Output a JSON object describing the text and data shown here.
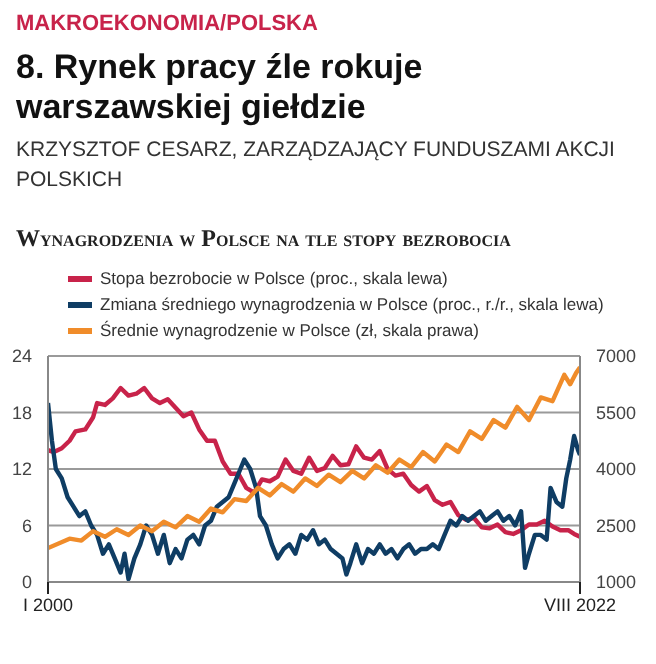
{
  "chart_data": {
    "type": "line",
    "annotations": [
      "MAKROEKONOMIA/POLSKA",
      "8. Rynek pracy źle rokuje warszawskiej giełdzie",
      "KRZYSZTOF CESARZ, ZARZĄDZAJĄCY FUNDUSZAMI AKCJI POLSKICH"
    ],
    "title": "Wynagrodzenia w Polsce na tle stopy bezrobocia",
    "xlim": [
      "2000-01",
      "2022-08"
    ],
    "xticks": [
      {
        "value": "2000-01",
        "label": "I 2000"
      },
      {
        "value": "2022-08",
        "label": "VIII 2022"
      }
    ],
    "ylim": [
      0,
      24
    ],
    "yticks": [
      0,
      6,
      12,
      18,
      24
    ],
    "y2lim": [
      1000,
      7000
    ],
    "y2ticks": [
      1000,
      2500,
      4000,
      5500,
      7000
    ],
    "grid": "y",
    "legend": "top left",
    "marker": "none",
    "line_style": "solid",
    "series": [
      {
        "name": "Stopa bezrobocie w Polsce (proc., skala lewa)",
        "color": "#c8234a",
        "x": [
          "2000-01",
          "2000-04",
          "2000-08",
          "2000-12",
          "2001-03",
          "2001-08",
          "2001-12",
          "2002-02",
          "2002-06",
          "2002-10",
          "2003-02",
          "2003-06",
          "2003-10",
          "2004-02",
          "2004-06",
          "2004-10",
          "2005-02",
          "2005-06",
          "2005-10",
          "2006-02",
          "2006-06",
          "2006-10",
          "2007-02",
          "2007-06",
          "2007-10",
          "2008-02",
          "2008-06",
          "2008-10",
          "2009-02",
          "2009-06",
          "2009-10",
          "2010-02",
          "2010-06",
          "2010-10",
          "2011-02",
          "2011-06",
          "2011-10",
          "2012-02",
          "2012-06",
          "2012-10",
          "2013-02",
          "2013-06",
          "2013-10",
          "2014-02",
          "2014-06",
          "2014-10",
          "2015-02",
          "2015-06",
          "2015-10",
          "2016-02",
          "2016-06",
          "2016-10",
          "2017-02",
          "2017-06",
          "2017-10",
          "2018-02",
          "2018-06",
          "2018-10",
          "2019-02",
          "2019-06",
          "2019-10",
          "2020-02",
          "2020-06",
          "2020-10",
          "2021-02",
          "2021-06",
          "2021-10",
          "2022-02",
          "2022-05",
          "2022-08"
        ],
        "values": [
          14,
          13.8,
          14.2,
          15,
          16,
          16.2,
          17.5,
          19,
          18.8,
          19.5,
          20.6,
          19.8,
          20,
          20.6,
          19.5,
          19,
          19.4,
          18.5,
          17.6,
          18,
          16.2,
          15,
          15,
          12.8,
          11.5,
          11.5,
          10,
          9.5,
          10.9,
          10.7,
          11.2,
          13,
          11.8,
          11.5,
          13.2,
          11.8,
          12.1,
          13.4,
          12.4,
          12.5,
          14.4,
          13.2,
          13,
          13.9,
          12,
          11.3,
          11.5,
          10.3,
          9.6,
          10.2,
          8.7,
          8.2,
          8.5,
          7.1,
          6.6,
          6.8,
          5.8,
          5.7,
          6.1,
          5.3,
          5.1,
          5.5,
          6.1,
          6.1,
          6.5,
          5.9,
          5.5,
          5.5,
          5.1,
          4.8
        ]
      },
      {
        "name": "Zmiana średniego wynagrodzenia w Polsce (proc., r./r., skala lewa)",
        "color": "#0f3d64",
        "x": [
          "2000-01",
          "2000-03",
          "2000-05",
          "2000-08",
          "2000-11",
          "2001-02",
          "2001-05",
          "2001-08",
          "2001-11",
          "2002-02",
          "2002-05",
          "2002-08",
          "2002-11",
          "2003-02",
          "2003-04",
          "2003-06",
          "2003-09",
          "2003-12",
          "2004-03",
          "2004-06",
          "2004-09",
          "2004-12",
          "2005-03",
          "2005-06",
          "2005-09",
          "2005-12",
          "2006-03",
          "2006-06",
          "2006-09",
          "2006-12",
          "2007-03",
          "2007-06",
          "2007-09",
          "2007-12",
          "2008-03",
          "2008-05",
          "2008-08",
          "2008-11",
          "2009-01",
          "2009-04",
          "2009-07",
          "2009-10",
          "2010-01",
          "2010-04",
          "2010-07",
          "2010-10",
          "2011-01",
          "2011-04",
          "2011-07",
          "2011-10",
          "2012-01",
          "2012-04",
          "2012-07",
          "2012-09",
          "2012-11",
          "2013-02",
          "2013-05",
          "2013-08",
          "2013-11",
          "2014-02",
          "2014-05",
          "2014-08",
          "2014-11",
          "2015-02",
          "2015-05",
          "2015-08",
          "2015-11",
          "2016-02",
          "2016-05",
          "2016-08",
          "2016-11",
          "2017-02",
          "2017-05",
          "2017-08",
          "2017-11",
          "2018-02",
          "2018-05",
          "2018-08",
          "2018-11",
          "2019-02",
          "2019-05",
          "2019-08",
          "2019-11",
          "2020-02",
          "2020-04",
          "2020-06",
          "2020-09",
          "2020-12",
          "2021-03",
          "2021-05",
          "2021-08",
          "2021-11",
          "2022-01",
          "2022-03",
          "2022-05",
          "2022-07",
          "2022-08"
        ],
        "values": [
          19,
          15,
          12,
          11,
          9,
          8,
          7,
          7.5,
          6,
          5,
          3,
          4,
          2.5,
          1,
          3,
          0.3,
          2.5,
          4,
          6,
          5,
          3,
          5,
          2,
          3.5,
          2.5,
          4.5,
          5,
          4,
          6,
          6.5,
          8,
          8.5,
          9,
          10.5,
          12,
          13,
          12,
          10,
          7,
          6,
          4,
          2.5,
          3.5,
          4,
          3,
          5,
          4.5,
          5.5,
          4,
          4.5,
          3.5,
          3,
          2.5,
          0.8,
          2,
          4,
          2,
          3.5,
          3,
          4,
          3,
          3.5,
          2.5,
          3.5,
          4,
          3,
          3.5,
          3.5,
          4,
          3.5,
          5,
          6.5,
          6,
          7,
          6.5,
          7,
          7.5,
          6.5,
          7,
          7.5,
          6.5,
          7,
          6,
          7.5,
          1.5,
          3,
          5,
          5,
          4.5,
          10,
          8.5,
          8,
          11,
          13,
          15.5,
          14,
          13.5
        ]
      },
      {
        "name": "Średnie wynagrodzenie w Polsce (zł, skala prawa)",
        "color": "#f08c2a",
        "axis": "y2",
        "x": [
          "2000-01",
          "2000-12",
          "2001-06",
          "2001-12",
          "2002-06",
          "2002-12",
          "2003-06",
          "2003-12",
          "2004-06",
          "2004-12",
          "2005-06",
          "2005-12",
          "2006-06",
          "2006-12",
          "2007-06",
          "2007-12",
          "2008-06",
          "2008-12",
          "2009-06",
          "2009-12",
          "2010-06",
          "2010-12",
          "2011-06",
          "2011-12",
          "2012-06",
          "2012-12",
          "2013-06",
          "2013-12",
          "2014-06",
          "2014-12",
          "2015-06",
          "2015-12",
          "2016-06",
          "2016-12",
          "2017-06",
          "2017-12",
          "2018-06",
          "2018-12",
          "2019-06",
          "2019-12",
          "2020-06",
          "2020-12",
          "2021-06",
          "2021-12",
          "2022-03",
          "2022-06",
          "2022-08"
        ],
        "values": [
          1900,
          2150,
          2100,
          2350,
          2200,
          2400,
          2250,
          2500,
          2350,
          2600,
          2450,
          2750,
          2600,
          2950,
          2850,
          3200,
          3150,
          3500,
          3300,
          3600,
          3400,
          3750,
          3550,
          3850,
          3650,
          3950,
          3750,
          4100,
          3900,
          4250,
          4050,
          4450,
          4200,
          4650,
          4450,
          5000,
          4800,
          5300,
          5100,
          5650,
          5300,
          5900,
          5800,
          6500,
          6250,
          6550,
          6700
        ]
      }
    ]
  }
}
